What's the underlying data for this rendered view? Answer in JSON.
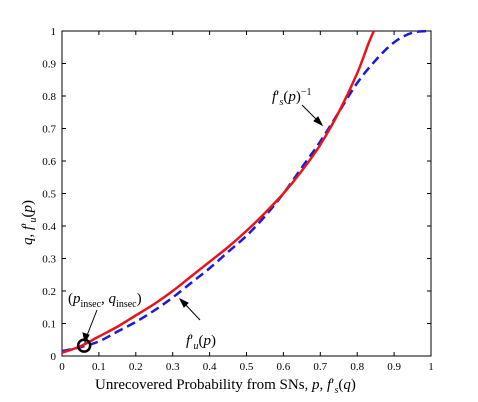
{
  "chart_data": {
    "type": "line",
    "xlabel": "Unrecovered Probability from SNs, p, f′s(q)",
    "ylabel": "q, f′u(p)",
    "xlim": [
      0,
      1
    ],
    "ylim": [
      0,
      1
    ],
    "x_ticks": [
      "0",
      "0.1",
      "0.2",
      "0.3",
      "0.4",
      "0.5",
      "0.6",
      "0.7",
      "0.8",
      "0.9",
      "1"
    ],
    "y_ticks": [
      "0",
      "0.1",
      "0.2",
      "0.3",
      "0.4",
      "0.5",
      "0.6",
      "0.7",
      "0.8",
      "0.9",
      "1"
    ],
    "grid": false,
    "series": [
      {
        "name": "f′s(p)⁻¹",
        "color": "#e8141b",
        "style": "solid",
        "x": [
          0,
          0.05,
          0.1,
          0.15,
          0.2,
          0.25,
          0.3,
          0.35,
          0.4,
          0.45,
          0.5,
          0.55,
          0.6,
          0.65,
          0.7,
          0.75,
          0.8,
          0.83,
          0.845
        ],
        "y": [
          0.01,
          0.03,
          0.06,
          0.09,
          0.125,
          0.16,
          0.2,
          0.245,
          0.29,
          0.335,
          0.385,
          0.44,
          0.5,
          0.57,
          0.65,
          0.75,
          0.87,
          0.96,
          1.0
        ]
      },
      {
        "name": "f′u(p)",
        "color": "#1a1adb",
        "style": "dashed",
        "x": [
          0,
          0.05,
          0.1,
          0.15,
          0.2,
          0.25,
          0.3,
          0.35,
          0.4,
          0.45,
          0.5,
          0.55,
          0.6,
          0.65,
          0.7,
          0.75,
          0.8,
          0.85,
          0.9,
          0.95,
          1.0
        ],
        "y": [
          0.015,
          0.027,
          0.045,
          0.075,
          0.105,
          0.14,
          0.18,
          0.225,
          0.27,
          0.32,
          0.37,
          0.43,
          0.5,
          0.58,
          0.66,
          0.75,
          0.84,
          0.91,
          0.965,
          0.995,
          1.0
        ]
      }
    ],
    "annotations": [
      {
        "text": "f′s(p)⁻¹",
        "ref": "series-red"
      },
      {
        "text": "f′u(p)",
        "ref": "series-blue"
      },
      {
        "text": "(pinsec, qinsec)",
        "ref": "intersection"
      }
    ],
    "intersection": {
      "x": 0.06,
      "y": 0.032
    }
  }
}
